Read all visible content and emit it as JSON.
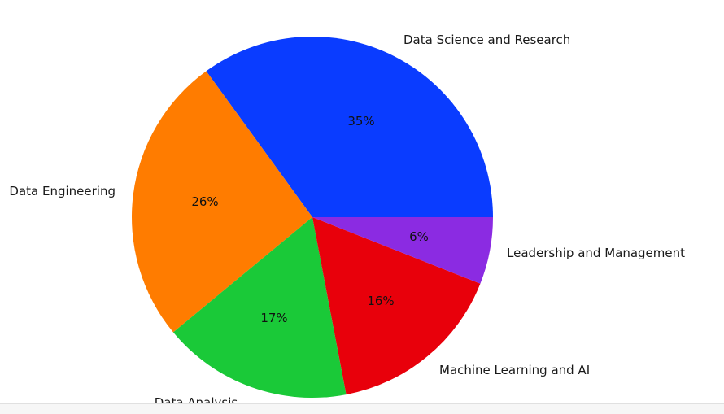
{
  "chart_data": {
    "type": "pie",
    "slices": [
      {
        "label": "Data Science and Research",
        "value": 35,
        "pct_label": "35%",
        "color": "#0a3cff"
      },
      {
        "label": "Data Engineering",
        "value": 26,
        "pct_label": "26%",
        "color": "#ff7c00"
      },
      {
        "label": "Data Analysis",
        "value": 17,
        "pct_label": "17%",
        "color": "#1ac938"
      },
      {
        "label": "Machine Learning and AI",
        "value": 16,
        "pct_label": "16%",
        "color": "#e8000b"
      },
      {
        "label": "Leadership and Management",
        "value": 6,
        "pct_label": "6%",
        "color": "#8b2be2"
      }
    ]
  }
}
